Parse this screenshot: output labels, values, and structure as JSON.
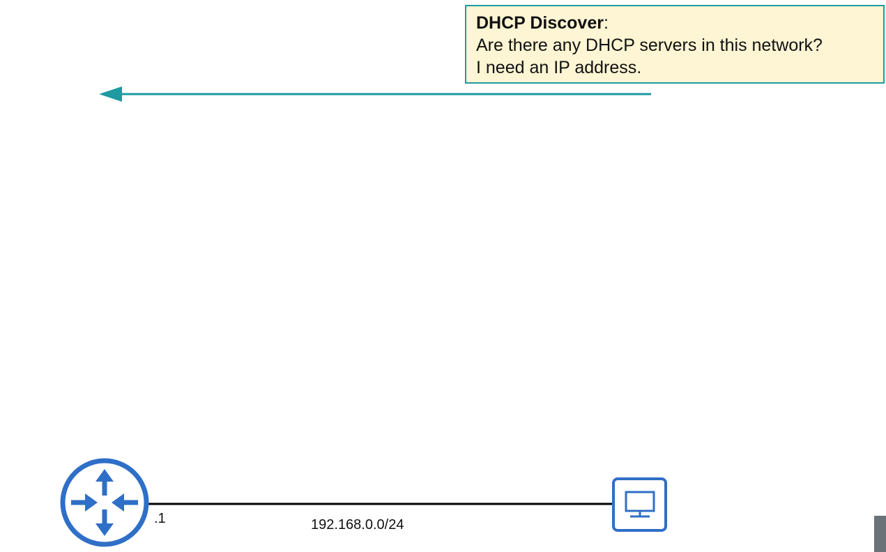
{
  "callout": {
    "title": "DHCP Discover",
    "title_suffix": ":",
    "line1": "Are there any DHCP servers in this network?",
    "line2": "I need an IP address."
  },
  "network": {
    "router_interface_label": ".1",
    "subnet_label": "192.168.0.0/24"
  },
  "icons": {
    "router": "router-icon",
    "pc": "pc-icon",
    "arrow": "message-arrow-left"
  },
  "colors": {
    "accent": "#1e9aa0",
    "device_blue": "#2f6fc7",
    "callout_bg": "#fdf5d3",
    "link": "#000000"
  }
}
